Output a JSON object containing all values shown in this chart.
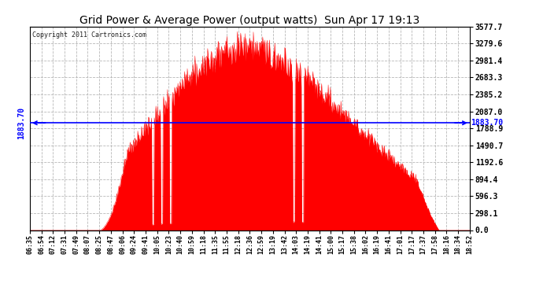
{
  "title": "Grid Power & Average Power (output watts)  Sun Apr 17 19:13",
  "copyright": "Copyright 2011 Cartronics.com",
  "avg_power": 1883.7,
  "ymax": 3577.7,
  "yticks": [
    0.0,
    298.1,
    596.3,
    894.4,
    1192.6,
    1490.7,
    1788.9,
    2087.0,
    2385.2,
    2683.3,
    2981.4,
    3279.6,
    3577.7
  ],
  "ytick_labels": [
    "0.0",
    "298.1",
    "596.3",
    "894.4",
    "1192.6",
    "1490.7",
    "1788.9",
    "2087.0",
    "2385.2",
    "2683.3",
    "2981.4",
    "3279.6",
    "3577.7"
  ],
  "bg_color": "#ffffff",
  "fill_color": "#ff0000",
  "avg_line_color": "#0000ff",
  "avg_label_color": "#0000ff",
  "title_color": "#000000",
  "grid_color": "#b0b0b0",
  "xtick_labels": [
    "06:35",
    "06:54",
    "07:12",
    "07:31",
    "07:49",
    "08:07",
    "08:25",
    "08:47",
    "09:06",
    "09:24",
    "09:41",
    "10:05",
    "10:23",
    "10:40",
    "10:59",
    "11:18",
    "11:35",
    "11:55",
    "12:18",
    "12:36",
    "12:59",
    "13:19",
    "13:42",
    "14:03",
    "14:19",
    "14:41",
    "15:00",
    "15:17",
    "15:38",
    "16:02",
    "16:19",
    "16:41",
    "17:01",
    "17:17",
    "17:37",
    "17:58",
    "18:16",
    "18:34",
    "18:52"
  ],
  "n_points": 800,
  "peak_value": 3540
}
